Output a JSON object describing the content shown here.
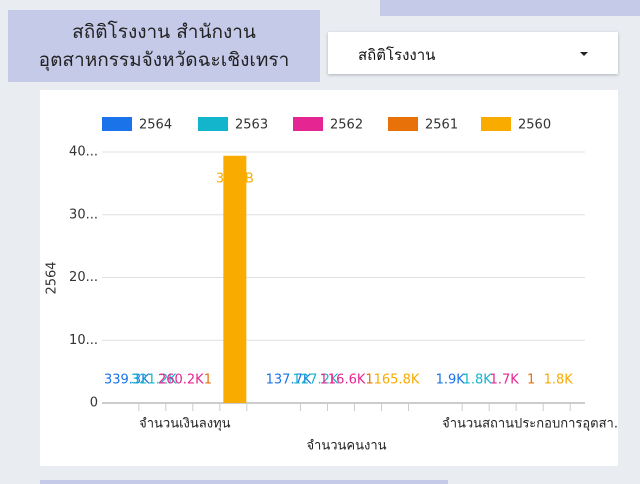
{
  "header": {
    "title_line1": "สถิติโรงงาน สำนักงาน",
    "title_line2": "อุตสาหกรรมจังหวัดฉะเชิงเทรา"
  },
  "dropdown": {
    "selected": "สถิติโรงงาน"
  },
  "chart_data": {
    "type": "bar",
    "y_label": "2564",
    "categories": [
      "จำนวนเงินลงทุน",
      "จำนวนคนงาน",
      "จำนวนสถานประกอบการอุตสา..."
    ],
    "series": [
      {
        "name": "2564",
        "color": "#1a73e8",
        "values": [
          339300,
          137700,
          1900
        ],
        "value_labels": [
          "339.3K",
          "137.7K",
          "1.9K"
        ]
      },
      {
        "name": "2563",
        "color": "#12b5cb",
        "values": [
          321200,
          127200,
          1800
        ],
        "value_labels": [
          "321.2K",
          "127.2K",
          "1.8K"
        ]
      },
      {
        "name": "2562",
        "color": "#e52592",
        "values": [
          260200,
          116600,
          1700
        ],
        "value_labels": [
          "260.2K",
          "116.6K",
          "1.7K"
        ]
      },
      {
        "name": "2561",
        "color": "#e8710a",
        "values": [
          1,
          1,
          1
        ]
      },
      {
        "name": "2560",
        "color": "#f9ab00",
        "values": [
          39400000000,
          165800,
          1800
        ],
        "value_labels": [
          "39.4B",
          "165.8K",
          "1.8K"
        ]
      }
    ],
    "ylim": [
      0,
      40000000000
    ],
    "yticks": [
      0,
      {
        "value": 10000000000,
        "label": "10..."
      },
      {
        "value": 20000000000,
        "label": "20..."
      },
      {
        "value": 30000000000,
        "label": "30..."
      },
      {
        "value": 40000000000,
        "label": "40..."
      }
    ],
    "grid": true
  }
}
